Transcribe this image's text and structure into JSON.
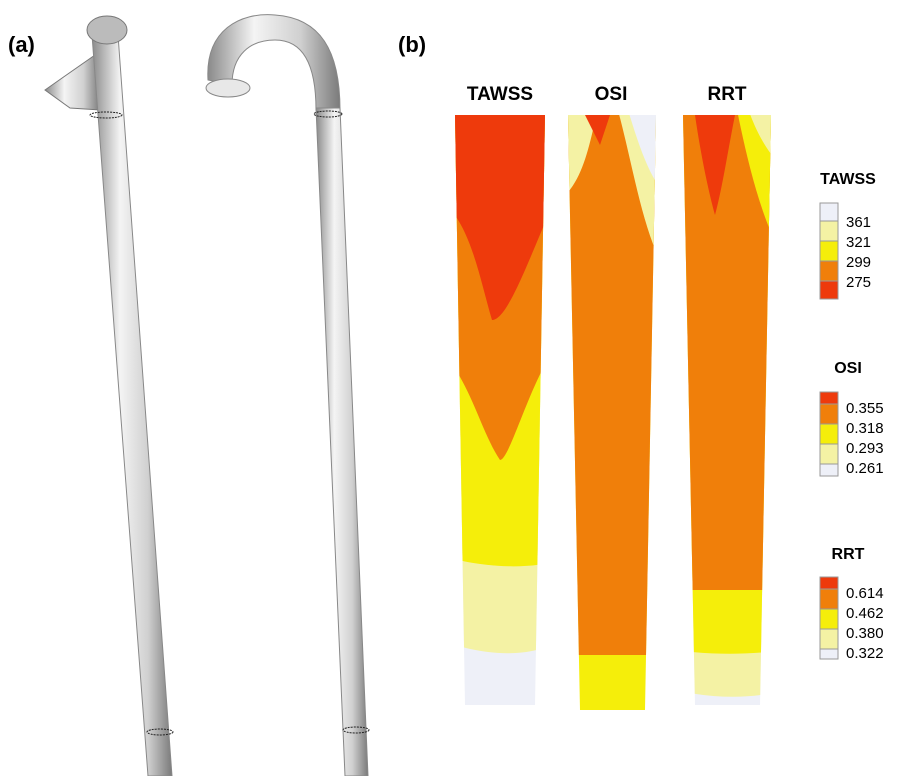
{
  "panel_a": {
    "label": "(a)"
  },
  "panel_b": {
    "label": "(b)",
    "columns": [
      "TAWSS",
      "OSI",
      "RRT"
    ],
    "legends": [
      {
        "title": "TAWSS",
        "levels": [
          "361",
          "321",
          "299",
          "275"
        ]
      },
      {
        "title": "OSI",
        "levels": [
          "0.355",
          "0.318",
          "0.293",
          "0.261"
        ]
      },
      {
        "title": "RRT",
        "levels": [
          "0.614",
          "0.462",
          "0.380",
          "0.322"
        ]
      }
    ]
  }
}
